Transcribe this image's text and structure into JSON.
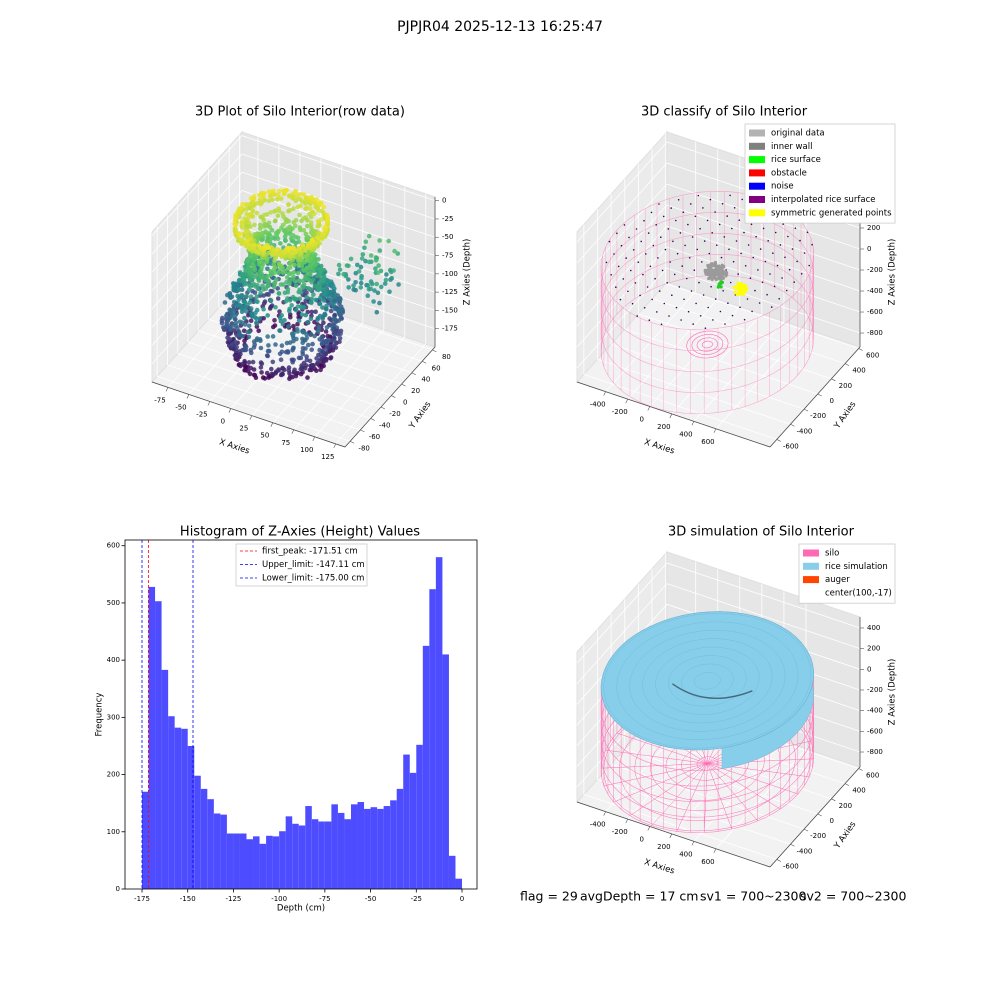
{
  "title": "PJPJR04 2025-12-13 16:25:47",
  "status": [
    "flag = 29",
    "avgDepth = 17 cm",
    "sv1 = 700~2300",
    "sv2 = 700~2300"
  ],
  "chart_data": [
    {
      "type": "scatter3d",
      "title": "3D Plot of Silo Interior(row data)",
      "xlabel": "X Axies",
      "ylabel": "Y Axies",
      "zlabel": "Z Axies (Depth)",
      "xlim": [
        -94,
        136
      ],
      "xticks": [
        -75,
        -50,
        -25,
        0,
        25,
        50,
        75,
        100,
        125
      ],
      "ylim": [
        -90,
        85
      ],
      "yticks": [
        -80,
        -60,
        -40,
        -20,
        0,
        20,
        40,
        60,
        80
      ],
      "zlim": [
        -200,
        5
      ],
      "zticks": [
        -175,
        -150,
        -125,
        -100,
        -75,
        -50,
        -25,
        0
      ]
    },
    {
      "type": "wireframe3d",
      "title": "3D classify of Silo Interior",
      "xlabel": "X Axies",
      "ylabel": "Y Axies",
      "zlabel": "Z Axies (Depth)",
      "xlim": [
        -660,
        1090
      ],
      "xticks": [
        -400,
        -200,
        0,
        200,
        400,
        600
      ],
      "ylim": [
        -700,
        620
      ],
      "yticks": [
        -600,
        -400,
        -200,
        0,
        200,
        400,
        600
      ],
      "zlim": [
        -933,
        495
      ],
      "zticks": [
        -800,
        -600,
        -400,
        -200,
        0,
        200,
        400
      ],
      "legend": [
        {
          "label": "original data",
          "color": "#b3b3b3"
        },
        {
          "label": "inner wall",
          "color": "#808080"
        },
        {
          "label": "rice surface",
          "color": "#00ff00"
        },
        {
          "label": "obstacle",
          "color": "#ff0000"
        },
        {
          "label": "noise",
          "color": "#0000ff"
        },
        {
          "label": "interpolated rice surface",
          "color": "#800080"
        },
        {
          "label": "symmetric generated points",
          "color": "#ffff00"
        }
      ]
    },
    {
      "type": "histogram",
      "title": "Histogram of Z-Axies (Height) Values",
      "xlabel": "Depth (cm)",
      "ylabel": "Frequency",
      "color": "#4d4dff",
      "bins": [
        -175,
        -171.43,
        -167.86,
        -164.29,
        -160.71,
        -157.14,
        -153.57,
        -150,
        -146.43,
        -142.86,
        -139.29,
        -135.71,
        -132.14,
        -128.57,
        -125,
        -121.43,
        -117.86,
        -114.29,
        -110.71,
        -107.14,
        -103.57,
        -100,
        -96.43,
        -92.86,
        -89.29,
        -85.71,
        -82.14,
        -78.57,
        -75,
        -71.43,
        -67.86,
        -64.29,
        -60.71,
        -57.14,
        -53.57,
        -50,
        -46.43,
        -42.86,
        -39.29,
        -35.71,
        -32.14,
        -28.57,
        -25,
        -21.43,
        -17.86,
        -14.29,
        -10.71,
        -7.14,
        -3.57,
        0
      ],
      "counts": [
        170,
        528,
        503,
        383,
        302,
        282,
        280,
        250,
        198,
        175,
        157,
        132,
        130,
        97,
        97,
        97,
        87,
        92,
        79,
        93,
        92,
        101,
        127,
        114,
        111,
        145,
        122,
        118,
        118,
        148,
        133,
        122,
        148,
        152,
        140,
        143,
        140,
        145,
        155,
        175,
        235,
        203,
        252,
        425,
        524,
        580,
        410,
        58,
        18
      ],
      "xlim": [
        -184.3,
        8.2
      ],
      "xticks": [
        -175,
        -150,
        -125,
        -100,
        -75,
        -50,
        -25,
        0
      ],
      "ylim": [
        0,
        610
      ],
      "yticks": [
        0,
        100,
        200,
        300,
        400,
        500,
        600
      ],
      "vlines": [
        {
          "label": "first_peak: -171.51 cm",
          "value": -171.51,
          "color": "#ff0000"
        },
        {
          "label": "Upper_limit: -147.11 cm",
          "value": -147.11,
          "color": "#0000ff"
        },
        {
          "label": "Lower_limit: -175.00 cm",
          "value": -175.0,
          "color": "#0000ff"
        }
      ]
    },
    {
      "type": "surface3d",
      "title": "3D simulation of Silo Interior",
      "xlabel": "X Axies",
      "ylabel": "Y Axies",
      "zlabel": "Z Axies (Depth)",
      "xlim": [
        -660,
        1090
      ],
      "xticks": [
        -400,
        -200,
        0,
        200,
        400,
        600
      ],
      "ylim": [
        -700,
        620
      ],
      "yticks": [
        -600,
        -400,
        -200,
        0,
        200,
        400,
        600
      ],
      "zlim": [
        -945,
        506
      ],
      "zticks": [
        -800,
        -600,
        -400,
        -200,
        0,
        200,
        400
      ],
      "legend": [
        {
          "label": "silo",
          "color": "#ff69b4"
        },
        {
          "label": "rice simulation",
          "color": "#87ceeb"
        },
        {
          "label": "auger",
          "color": "#ff4500"
        },
        {
          "label": "center(100,-17)"
        }
      ]
    }
  ]
}
